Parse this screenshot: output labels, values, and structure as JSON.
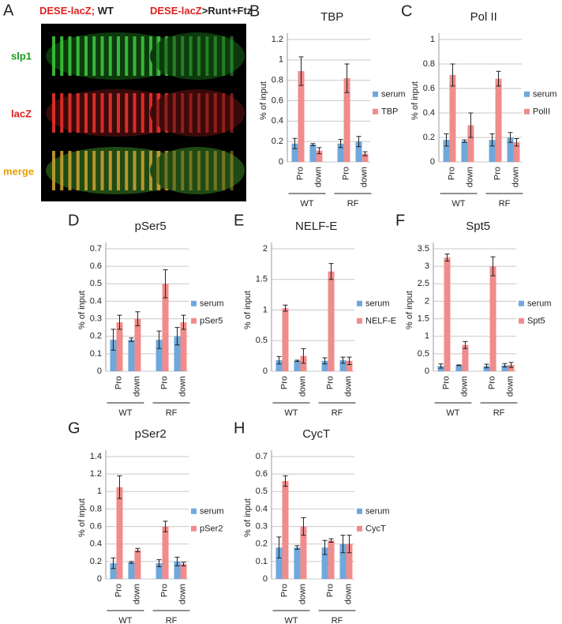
{
  "panel_a": {
    "label": "A",
    "left_title": [
      "DESE-lacZ;",
      "WT"
    ],
    "right_title": [
      "DESE-lacZ",
      ">Runt+Ftz"
    ],
    "rows": [
      "slp1",
      "lacZ",
      "merge"
    ]
  },
  "chart_data": [
    {
      "panel": "B",
      "type": "bar",
      "title": "TBP",
      "y_label": "% of input",
      "categories": [
        "Pro",
        "down",
        "Pro",
        "down"
      ],
      "groups": [
        "WT",
        "RF"
      ],
      "ylim": [
        0,
        1.2
      ],
      "yticks": [
        0,
        0.2,
        0.4,
        0.6,
        0.8,
        1,
        1.2
      ],
      "grid": true,
      "series": [
        {
          "name": "serum",
          "color": "#6fa8dc",
          "values": [
            0.18,
            0.17,
            0.18,
            0.2
          ],
          "errors": [
            0.05,
            0.01,
            0.04,
            0.05
          ]
        },
        {
          "name": "TBP",
          "color": "#f08c8c",
          "values": [
            0.89,
            0.11,
            0.82,
            0.08
          ],
          "errors": [
            0.14,
            0.03,
            0.14,
            0.02
          ]
        }
      ]
    },
    {
      "panel": "C",
      "type": "bar",
      "title": "Pol II",
      "y_label": "% of input",
      "categories": [
        "Pro",
        "down",
        "Pro",
        "down"
      ],
      "groups": [
        "WT",
        "RF"
      ],
      "ylim": [
        0,
        1
      ],
      "yticks": [
        0,
        0.2,
        0.4,
        0.6,
        0.8,
        1
      ],
      "grid": true,
      "series": [
        {
          "name": "serum",
          "color": "#6fa8dc",
          "values": [
            0.18,
            0.17,
            0.18,
            0.2
          ],
          "errors": [
            0.05,
            0.01,
            0.05,
            0.04
          ]
        },
        {
          "name": "PolII",
          "color": "#f08c8c",
          "values": [
            0.71,
            0.3,
            0.68,
            0.16
          ],
          "errors": [
            0.09,
            0.1,
            0.06,
            0.03
          ]
        }
      ]
    },
    {
      "panel": "D",
      "type": "bar",
      "title": "pSer5",
      "y_label": "% of input",
      "categories": [
        "Pro",
        "down",
        "Pro",
        "down"
      ],
      "groups": [
        "WT",
        "RF"
      ],
      "ylim": [
        0,
        0.7
      ],
      "yticks": [
        0,
        0.1,
        0.2,
        0.3,
        0.4,
        0.5,
        0.6,
        0.7
      ],
      "grid": true,
      "series": [
        {
          "name": "serum",
          "color": "#6fa8dc",
          "values": [
            0.18,
            0.18,
            0.18,
            0.2
          ],
          "errors": [
            0.06,
            0.01,
            0.05,
            0.05
          ]
        },
        {
          "name": "pSer5",
          "color": "#f08c8c",
          "values": [
            0.28,
            0.3,
            0.5,
            0.28
          ],
          "errors": [
            0.04,
            0.04,
            0.08,
            0.04
          ]
        }
      ]
    },
    {
      "panel": "E",
      "type": "bar",
      "title": "NELF-E",
      "y_label": "% of input",
      "categories": [
        "Pro",
        "down",
        "Pro",
        "down"
      ],
      "groups": [
        "WT",
        "RF"
      ],
      "ylim": [
        0,
        2
      ],
      "yticks": [
        0,
        0.5,
        1,
        1.5,
        2
      ],
      "grid": true,
      "series": [
        {
          "name": "serum",
          "color": "#6fa8dc",
          "values": [
            0.18,
            0.17,
            0.17,
            0.18
          ],
          "errors": [
            0.06,
            0.01,
            0.05,
            0.05
          ]
        },
        {
          "name": "NELF-E",
          "color": "#f08c8c",
          "values": [
            1.03,
            0.25,
            1.63,
            0.17
          ],
          "errors": [
            0.05,
            0.12,
            0.13,
            0.06
          ]
        }
      ]
    },
    {
      "panel": "F",
      "type": "bar",
      "title": "Spt5",
      "y_label": "% of input",
      "categories": [
        "Pro",
        "down",
        "Pro",
        "down"
      ],
      "groups": [
        "WT",
        "RF"
      ],
      "ylim": [
        0,
        3.5
      ],
      "yticks": [
        0,
        0.5,
        1,
        1.5,
        2,
        2.5,
        3,
        3.5
      ],
      "grid": true,
      "series": [
        {
          "name": "serum",
          "color": "#6fa8dc",
          "values": [
            0.15,
            0.17,
            0.15,
            0.17
          ],
          "errors": [
            0.06,
            0.01,
            0.05,
            0.05
          ]
        },
        {
          "name": "Spt5",
          "color": "#f08c8c",
          "values": [
            3.25,
            0.75,
            3.0,
            0.18
          ],
          "errors": [
            0.1,
            0.1,
            0.27,
            0.07
          ]
        }
      ]
    },
    {
      "panel": "G",
      "type": "bar",
      "title": "pSer2",
      "y_label": "% of input",
      "categories": [
        "Pro",
        "down",
        "Pro",
        "down"
      ],
      "groups": [
        "WT",
        "RF"
      ],
      "ylim": [
        0,
        1.4
      ],
      "yticks": [
        0,
        0.2,
        0.4,
        0.6,
        0.8,
        1,
        1.2,
        1.4
      ],
      "grid": true,
      "series": [
        {
          "name": "serum",
          "color": "#6fa8dc",
          "values": [
            0.18,
            0.19,
            0.18,
            0.2
          ],
          "errors": [
            0.06,
            0.01,
            0.04,
            0.05
          ]
        },
        {
          "name": "pSer2",
          "color": "#f08c8c",
          "values": [
            1.05,
            0.33,
            0.6,
            0.17
          ],
          "errors": [
            0.13,
            0.02,
            0.06,
            0.02
          ]
        }
      ]
    },
    {
      "panel": "H",
      "type": "bar",
      "title": "CycT",
      "y_label": "% of input",
      "categories": [
        "Pro",
        "down",
        "Pro",
        "down"
      ],
      "groups": [
        "WT",
        "RF"
      ],
      "ylim": [
        0,
        0.7
      ],
      "yticks": [
        0,
        0.1,
        0.2,
        0.3,
        0.4,
        0.5,
        0.6,
        0.7
      ],
      "grid": true,
      "series": [
        {
          "name": "serum",
          "color": "#6fa8dc",
          "values": [
            0.18,
            0.18,
            0.18,
            0.2
          ],
          "errors": [
            0.06,
            0.01,
            0.04,
            0.05
          ]
        },
        {
          "name": "CycT",
          "color": "#f08c8c",
          "values": [
            0.56,
            0.3,
            0.22,
            0.2
          ],
          "errors": [
            0.03,
            0.05,
            0.01,
            0.05
          ]
        }
      ]
    }
  ]
}
